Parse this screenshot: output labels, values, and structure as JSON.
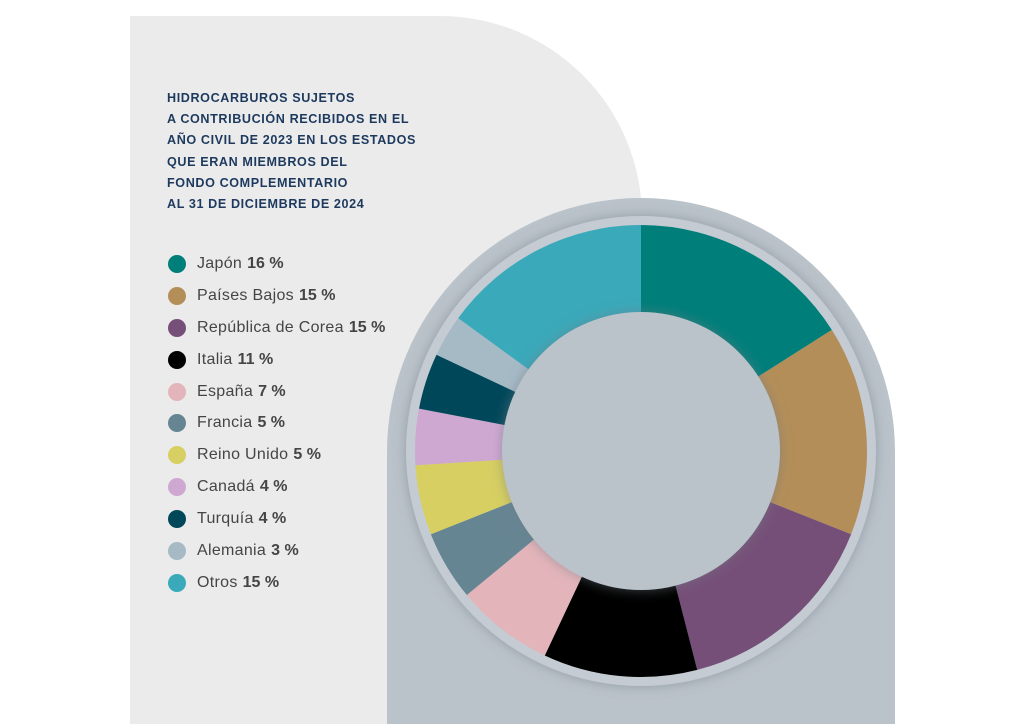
{
  "chart_data": {
    "type": "pie",
    "donut": true,
    "title_lines": [
      "HIDROCARBUROS SUJETOS",
      "A CONTRIBUCIÓN RECIBIDOS EN EL",
      "AÑO CIVIL DE 2023 EN LOS ESTADOS",
      "QUE ERAN MIEMBROS DEL",
      "FONDO COMPLEMENTARIO",
      "AL 31 DE DICIEMBRE DE 2024"
    ],
    "slices": [
      {
        "label": "Japón",
        "value": 16,
        "value_label": "16 %",
        "color": "#007e7a"
      },
      {
        "label": "Países Bajos",
        "value": 15,
        "value_label": "15 %",
        "color": "#b48e58"
      },
      {
        "label": "República de Corea",
        "value": 15,
        "value_label": "15 %",
        "color": "#764f78"
      },
      {
        "label": "Italia",
        "value": 11,
        "value_label": "11 %",
        "color": "#000000"
      },
      {
        "label": "España",
        "value": 7,
        "value_label": "7 %",
        "color": "#e3b4ba"
      },
      {
        "label": "Francia",
        "value": 5,
        "value_label": "5 %",
        "color": "#668593"
      },
      {
        "label": "Reino Unido",
        "value": 5,
        "value_label": "5 %",
        "color": "#d7cf61"
      },
      {
        "label": "Canadá",
        "value": 4,
        "value_label": "4 %",
        "color": "#cfa8d2"
      },
      {
        "label": "Turquía",
        "value": 4,
        "value_label": "4 %",
        "color": "#00475a"
      },
      {
        "label": "Alemania",
        "value": 3,
        "value_label": "3 %",
        "color": "#a6bac6"
      },
      {
        "label": "Otros",
        "value": 15,
        "value_label": "15 %",
        "color": "#3aa9ba"
      }
    ],
    "legend_position": "left"
  },
  "colors": {
    "panel_light": "#ebebeb",
    "panel_dark": "#bac2ca",
    "ring_shadow": "#a9b2bb",
    "title": "#1d3a5e"
  }
}
